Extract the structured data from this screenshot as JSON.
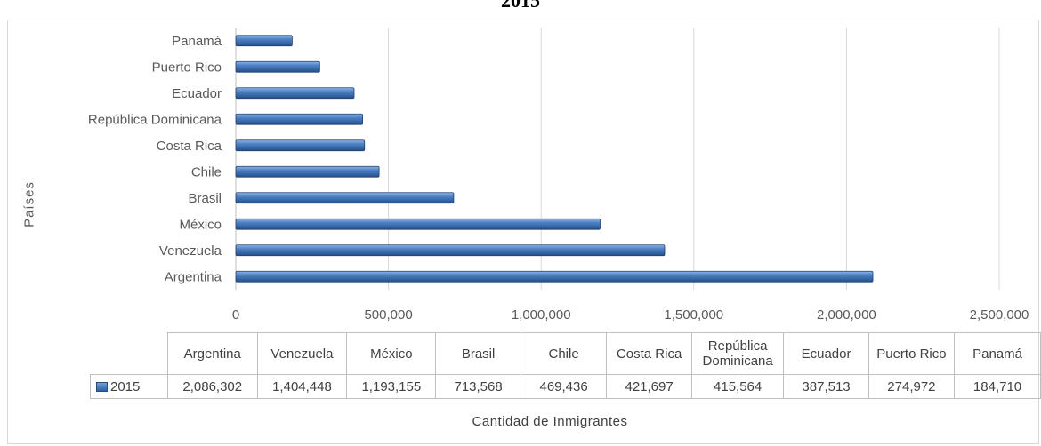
{
  "chart_data": {
    "type": "bar",
    "orientation": "horizontal",
    "title": "2015",
    "xlabel": "Cantidad de Inmigrantes",
    "ylabel": "Países",
    "categories": [
      "Argentina",
      "Venezuela",
      "México",
      "Brasil",
      "Chile",
      "Costa Rica",
      "República Dominicana",
      "Ecuador",
      "Puerto Rico",
      "Panamá"
    ],
    "series": [
      {
        "name": "2015",
        "values": [
          2086302,
          1404448,
          1193155,
          713568,
          469436,
          421697,
          415564,
          387513,
          274972,
          184710
        ],
        "color": "#3c6fb4"
      }
    ],
    "xlim": [
      0,
      2500000
    ],
    "x_ticks": [
      "0",
      "500,000",
      "1,000,000",
      "1,500,000",
      "2,000,000",
      "2,500,000"
    ],
    "grid": true,
    "data_table": {
      "headers": [
        "Argentina",
        "Venezuela",
        "México",
        "Brasil",
        "Chile",
        "Costa Rica",
        "República Dominicana",
        "Ecuador",
        "Puerto Rico",
        "Panamá"
      ],
      "row_label": "2015",
      "values": [
        "2,086,302",
        "1,404,448",
        "1,193,155",
        "713,568",
        "469,436",
        "421,697",
        "415,564",
        "387,513",
        "274,972",
        "184,710"
      ]
    }
  }
}
